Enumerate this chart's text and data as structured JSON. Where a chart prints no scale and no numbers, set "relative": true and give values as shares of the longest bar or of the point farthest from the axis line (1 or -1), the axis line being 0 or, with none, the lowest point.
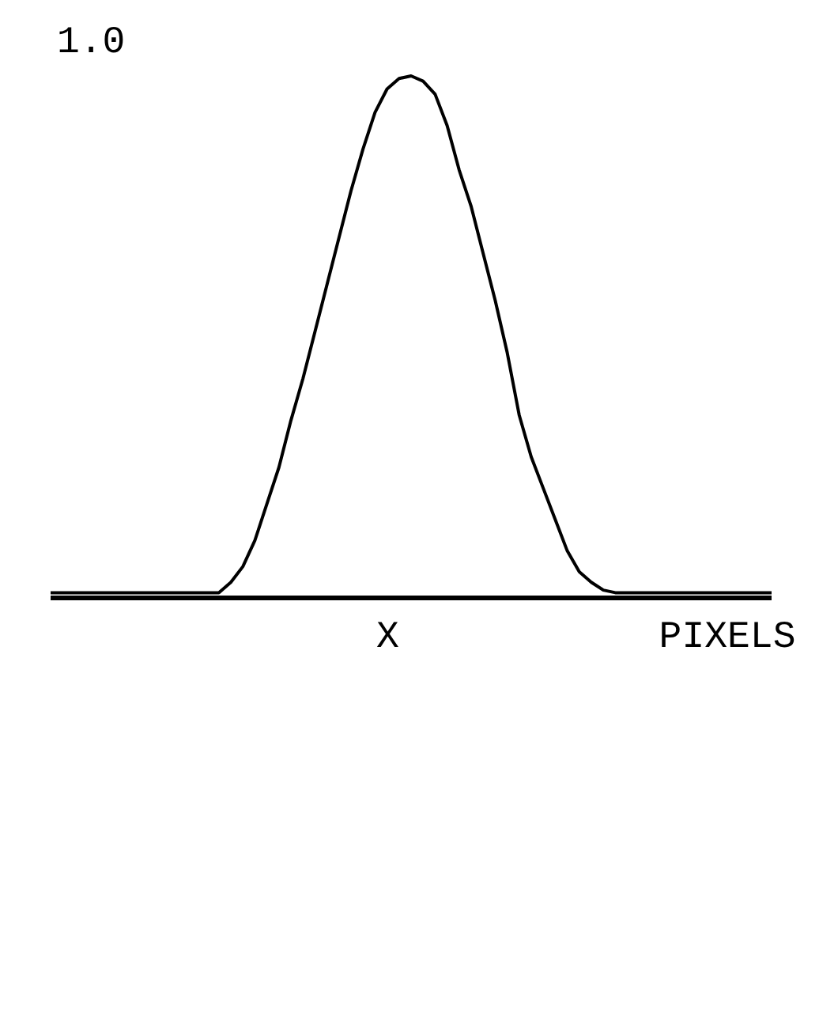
{
  "chart_data": {
    "type": "line",
    "xlabel": "X PIXELS",
    "annotations": [
      "1.0"
    ],
    "relative": true,
    "color": "#000000",
    "categories": [
      null,
      null,
      null,
      null,
      null,
      null,
      null,
      null,
      null,
      null,
      null,
      null,
      null,
      null,
      null,
      null,
      null,
      null,
      null,
      null,
      null,
      null,
      null,
      null,
      null,
      null,
      null,
      null,
      null,
      null,
      null,
      null,
      null,
      null,
      null,
      null,
      null,
      null,
      null,
      null,
      null,
      null,
      null,
      null,
      null,
      null,
      null,
      null,
      null,
      null,
      null,
      null,
      null,
      null,
      null,
      null,
      null,
      null,
      null,
      null,
      null
    ],
    "values": [
      0.01,
      0.01,
      0.01,
      0.01,
      0.01,
      0.01,
      0.01,
      0.01,
      0.01,
      0.01,
      0.01,
      0.01,
      0.01,
      0.01,
      0.01,
      0.03,
      0.06,
      0.11,
      0.18,
      0.25,
      0.34,
      0.42,
      0.51,
      0.6,
      0.69,
      0.78,
      0.86,
      0.93,
      0.975,
      0.995,
      1.0,
      0.99,
      0.965,
      0.905,
      0.82,
      0.75,
      0.66,
      0.57,
      0.47,
      0.35,
      0.27,
      0.21,
      0.15,
      0.09,
      0.05,
      0.03,
      0.015,
      0.01,
      0.01,
      0.01,
      0.01,
      0.01,
      0.01,
      0.01,
      0.01,
      0.01,
      0.01,
      0.01,
      0.01,
      0.01,
      0.01
    ]
  }
}
